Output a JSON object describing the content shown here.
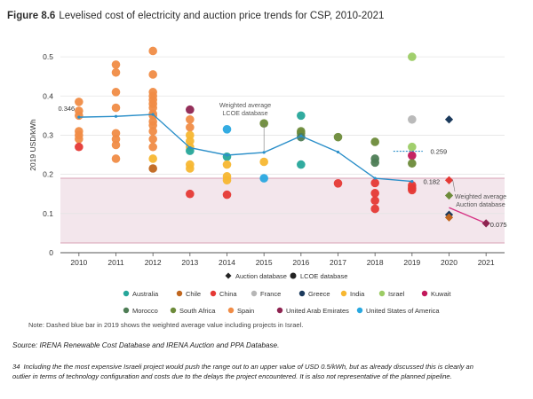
{
  "figure": {
    "number": "Figure 8.6",
    "title": "Levelised cost of electricity and auction price trends for CSP, 2010-2021"
  },
  "chart_data": {
    "type": "scatter",
    "ylabel": "2019 USD/kWh",
    "xlabel": "",
    "ylim": [
      0,
      0.55
    ],
    "yticks": [
      0,
      0.1,
      0.2,
      0.3,
      0.4,
      0.5
    ],
    "categories": [
      "2010",
      "2011",
      "2012",
      "2013",
      "2014",
      "2015",
      "2016",
      "2017",
      "2018",
      "2019",
      "2020",
      "2021"
    ],
    "grid": true,
    "colors": {
      "Australia": "#26a69a",
      "Chile": "#c0661e",
      "China": "#e53935",
      "France": "#b6b6b6",
      "Greece": "#1b3a5c",
      "India": "#f7b731",
      "Israel": "#9ccc65",
      "Kuwait": "#c2185b",
      "Morocco": "#4e7d55",
      "South Africa": "#6d8b3a",
      "Spain": "#f08c46",
      "United Arab Emirates": "#8e2451",
      "United States of America": "#29a8e0"
    },
    "projects": [
      {
        "x": "2010",
        "country": "Spain",
        "y": [
          0.385,
          0.362,
          0.35,
          0.31,
          0.3,
          0.29
        ]
      },
      {
        "x": "2010",
        "country": "China",
        "y": [
          0.27
        ]
      },
      {
        "x": "2011",
        "country": "Spain",
        "y": [
          0.48,
          0.46,
          0.41,
          0.37,
          0.305,
          0.29,
          0.275,
          0.24
        ]
      },
      {
        "x": "2012",
        "country": "Spain",
        "y": [
          0.515,
          0.455,
          0.41,
          0.4,
          0.39,
          0.38,
          0.37,
          0.355,
          0.35,
          0.335,
          0.325,
          0.31,
          0.29,
          0.27
        ]
      },
      {
        "x": "2012",
        "country": "India",
        "y": [
          0.24
        ]
      },
      {
        "x": "2012",
        "country": "Chile",
        "y": [
          0.215
        ]
      },
      {
        "x": "2013",
        "country": "United Arab Emirates",
        "y": [
          0.365
        ]
      },
      {
        "x": "2013",
        "country": "Spain",
        "y": [
          0.34,
          0.32
        ]
      },
      {
        "x": "2013",
        "country": "India",
        "y": [
          0.3,
          0.285,
          0.27,
          0.225,
          0.215
        ]
      },
      {
        "x": "2013",
        "country": "Australia",
        "y": [
          0.26
        ]
      },
      {
        "x": "2013",
        "country": "China",
        "y": [
          0.15
        ]
      },
      {
        "x": "2014",
        "country": "United States of America",
        "y": [
          0.315
        ]
      },
      {
        "x": "2014",
        "country": "Australia",
        "y": [
          0.245
        ]
      },
      {
        "x": "2014",
        "country": "India",
        "y": [
          0.225,
          0.195,
          0.185
        ]
      },
      {
        "x": "2014",
        "country": "China",
        "y": [
          0.148
        ]
      },
      {
        "x": "2015",
        "country": "South Africa",
        "y": [
          0.33
        ]
      },
      {
        "x": "2015",
        "country": "India",
        "y": [
          0.232
        ]
      },
      {
        "x": "2015",
        "country": "United States of America",
        "y": [
          0.19
        ]
      },
      {
        "x": "2016",
        "country": "Australia",
        "y": [
          0.35
        ]
      },
      {
        "x": "2016",
        "country": "South Africa",
        "y": [
          0.31,
          0.305
        ]
      },
      {
        "x": "2016",
        "country": "Morocco",
        "y": [
          0.295
        ]
      },
      {
        "x": "2016",
        "country": "Australia",
        "y": [
          0.225
        ]
      },
      {
        "x": "2017",
        "country": "South Africa",
        "y": [
          0.295
        ]
      },
      {
        "x": "2017",
        "country": "China",
        "y": [
          0.177
        ]
      },
      {
        "x": "2018",
        "country": "South Africa",
        "y": [
          0.283
        ]
      },
      {
        "x": "2018",
        "country": "Morocco",
        "y": [
          0.24,
          0.23
        ]
      },
      {
        "x": "2018",
        "country": "China",
        "y": [
          0.178,
          0.152,
          0.133,
          0.112
        ]
      },
      {
        "x": "2019",
        "country": "Israel",
        "y": [
          0.5,
          0.27
        ]
      },
      {
        "x": "2019",
        "country": "France",
        "y": [
          0.34
        ]
      },
      {
        "x": "2019",
        "country": "Kuwait",
        "y": [
          0.248
        ]
      },
      {
        "x": "2019",
        "country": "South Africa",
        "y": [
          0.228
        ]
      },
      {
        "x": "2019",
        "country": "China",
        "y": [
          0.172,
          0.165,
          0.16
        ]
      }
    ],
    "lcoe_database": {
      "name": "LCOE database",
      "x": [
        "2010",
        "2011",
        "2012",
        "2013",
        "2014",
        "2015",
        "2016",
        "2017",
        "2018",
        "2019"
      ],
      "y": [
        0.346,
        0.348,
        0.353,
        0.268,
        0.249,
        0.256,
        0.298,
        0.257,
        0.19,
        0.182
      ],
      "color": "#2b8fc9"
    },
    "auction_database": {
      "name": "Auction database",
      "points": [
        {
          "x": "2020",
          "y": 0.34,
          "country": "Greece"
        },
        {
          "x": "2020",
          "y": 0.185,
          "country": "China"
        },
        {
          "x": "2020",
          "y": 0.146,
          "country": "South Africa"
        },
        {
          "x": "2020",
          "y": 0.097,
          "country": "Greece"
        },
        {
          "x": "2020",
          "y": 0.09,
          "country": "Chile"
        },
        {
          "x": "2021",
          "y": 0.075,
          "country": "United Arab Emirates"
        }
      ],
      "trend": {
        "x": [
          "2020",
          "2021"
        ],
        "y": [
          0.115,
          0.075
        ],
        "color": "#d63384"
      }
    },
    "band": {
      "from": 0.025,
      "to": 0.19,
      "fill": "#f3e6ec",
      "stroke": "#d9a1b5"
    },
    "weighted_2019_bar": {
      "x": "2019",
      "y": 0.259
    },
    "data_labels": [
      {
        "text": "0.346",
        "x": "2010",
        "y": 0.346
      },
      {
        "text": "0.259",
        "x": "2019",
        "y": 0.259
      },
      {
        "text": "0.182",
        "x": "2019",
        "y": 0.182
      },
      {
        "text": "0.075",
        "x": "2021",
        "y": 0.075
      }
    ],
    "annotations": [
      {
        "text_lines": [
          "Weighted average",
          "LCOE database"
        ]
      },
      {
        "text_lines": [
          "Weighted average",
          "Auction database"
        ]
      }
    ],
    "legend_placement": "bottom",
    "legend_markers": [
      {
        "label": "Auction database",
        "shape": "diamond"
      },
      {
        "label": "LCOE database",
        "shape": "circle"
      }
    ],
    "legend_rows": [
      [
        "Australia",
        "Chile",
        "China",
        "France",
        "Greece",
        "India",
        "Israel",
        "Kuwait"
      ],
      [
        "Morocco",
        "South Africa",
        "Spain",
        "United Arab Emirates",
        "United States of America"
      ]
    ]
  },
  "note": "Note: Dashed blue bar in 2019 shows the weighted average value including projects in Israel.",
  "source": "Source: IRENA Renewable Cost Database and IRENA Auction and PPA Database.",
  "footnote": {
    "number": "34",
    "text": "Including the the most expensive Israeli project would push the range out to an upper value of USD 0.5/kWh, but as already discussed this is clearly an outlier in terms of technology configuration and costs due to the delays the project encountered. It is also not representative of the planned pipeline."
  }
}
